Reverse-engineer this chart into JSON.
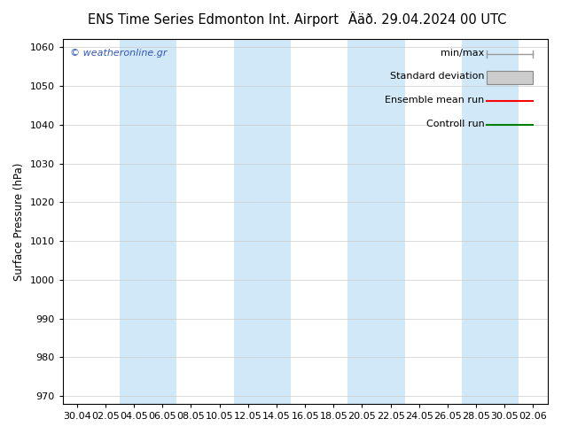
{
  "title_left": "ENS Time Series Edmonton Int. Airport",
  "title_right": "Ääð. 29.04.2024 00 UTC",
  "ylabel": "Surface Pressure (hPa)",
  "ylim": [
    968,
    1062
  ],
  "yticks": [
    970,
    980,
    990,
    1000,
    1010,
    1020,
    1030,
    1040,
    1050,
    1060
  ],
  "xtick_labels": [
    "30.04",
    "02.05",
    "04.05",
    "06.05",
    "08.05",
    "10.05",
    "12.05",
    "14.05",
    "16.05",
    "18.05",
    "20.05",
    "22.05",
    "24.05",
    "26.05",
    "28.05",
    "30.05",
    "02.06"
  ],
  "bg_color": "#ffffff",
  "plot_bg_color": "#ffffff",
  "band_color": "#d0e8f8",
  "watermark": "© weatheronline.gr",
  "watermark_color": "#3355bb",
  "title_fontsize": 10.5,
  "label_fontsize": 8.5,
  "tick_fontsize": 8,
  "legend_fontsize": 8
}
